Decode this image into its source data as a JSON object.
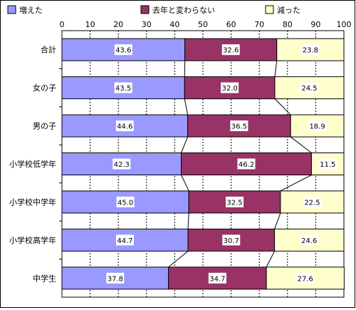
{
  "chart_data": {
    "type": "bar",
    "stacked": true,
    "orientation": "horizontal",
    "title": "",
    "xlabel": "",
    "ylabel": "",
    "xlim": [
      0,
      100
    ],
    "ticks": [
      "0",
      "10",
      "20",
      "30",
      "40",
      "50",
      "60",
      "70",
      "80",
      "90",
      "100"
    ],
    "legend_position": "top",
    "grid": true,
    "categories": [
      "合計",
      "女の子",
      "男の子",
      "小学校低学年",
      "小学校中学年",
      "小学校高学年",
      "中学生"
    ],
    "series": [
      {
        "name": "増えた",
        "color": "#9999ff",
        "values": [
          43.6,
          43.5,
          44.6,
          42.3,
          45.0,
          44.7,
          37.8
        ],
        "labels": [
          "43.6",
          "43.5",
          "44.6",
          "42.3",
          "45.0",
          "44.7",
          "37.8"
        ]
      },
      {
        "name": "去年と変わらない",
        "color": "#993366",
        "values": [
          32.6,
          32.0,
          36.5,
          46.2,
          32.5,
          30.7,
          34.7
        ],
        "labels": [
          "32.6",
          "32.0",
          "36.5",
          "46.2",
          "32.5",
          "30.7",
          "34.7"
        ]
      },
      {
        "name": "減った",
        "color": "#ffffcc",
        "values": [
          23.8,
          24.5,
          18.9,
          11.5,
          22.5,
          24.6,
          27.6
        ],
        "labels": [
          "23.8",
          "24.5",
          "18.9",
          "11.5",
          "22.5",
          "24.6",
          "27.6"
        ]
      }
    ]
  }
}
